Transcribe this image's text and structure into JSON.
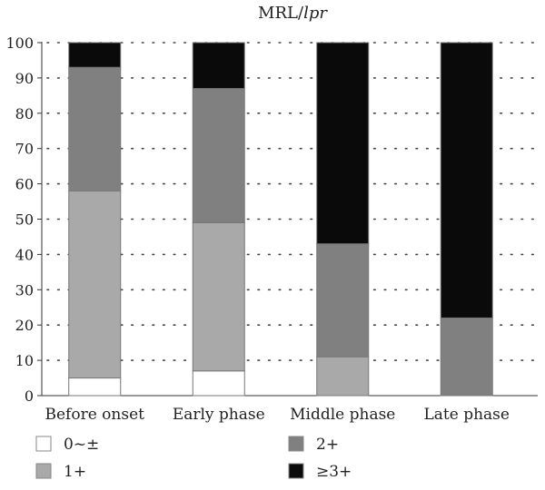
{
  "chart_data": {
    "type": "bar",
    "stacked": true,
    "title_prefix": "MRL/",
    "title_italic": "lpr",
    "categories": [
      "Before onset",
      "Early phase",
      "Middle phase",
      "Late phase"
    ],
    "series": [
      {
        "name": "0~±",
        "color": "#ffffff",
        "values": [
          5,
          7,
          0,
          0
        ]
      },
      {
        "name": "1+",
        "color": "#a9a9a9",
        "values": [
          53,
          42,
          11,
          0
        ]
      },
      {
        "name": "2+",
        "color": "#808080",
        "values": [
          35,
          38,
          32,
          22
        ]
      },
      {
        "name": "≥3+",
        "color": "#0a0a0a",
        "values": [
          7,
          13,
          57,
          78
        ]
      }
    ],
    "ylim": [
      0,
      100
    ],
    "yticks": [
      "0",
      "10",
      "20",
      "30",
      "40",
      "50",
      "60",
      "70",
      "80",
      "90",
      "100"
    ],
    "grid": "dotted-horizontal",
    "legend_position": "bottom"
  }
}
